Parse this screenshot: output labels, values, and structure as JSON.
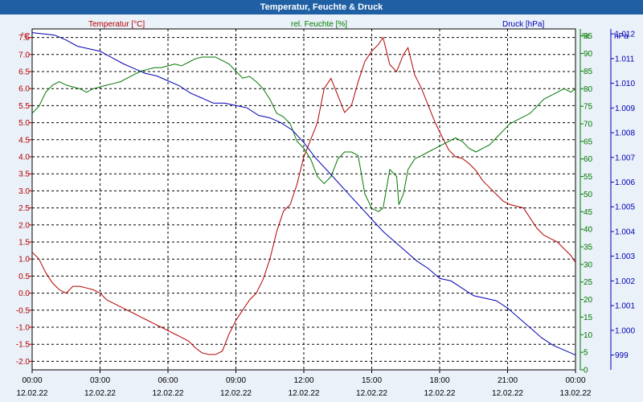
{
  "colors": {
    "temperature": "#b40000",
    "humidity": "#007800",
    "pressure": "#0000b4",
    "titlebar": "#1f5fa3",
    "background": "#eaf1f8"
  },
  "chart_data": {
    "type": "line",
    "title": "Temperatur, Feuchte & Druck",
    "grid": true,
    "x": {
      "ticks": [
        0,
        3,
        6,
        9,
        12,
        15,
        18,
        21,
        24
      ],
      "tick_labels": [
        "00:00",
        "03:00",
        "06:00",
        "09:00",
        "12:00",
        "15:00",
        "18:00",
        "21:00",
        "00:00"
      ],
      "date_labels": [
        "12.02.22",
        "12.02.22",
        "12.02.22",
        "12.02.22",
        "12.02.22",
        "12.02.22",
        "12.02.22",
        "12.02.22",
        "13.02.22"
      ],
      "range": [
        0,
        24
      ]
    },
    "axes": {
      "temperature": {
        "unit": "°C",
        "range": [
          -2.25,
          7.75
        ],
        "ticks": [
          -2.0,
          -1.5,
          -1.0,
          -0.5,
          0.0,
          0.5,
          1.0,
          1.5,
          2.0,
          2.5,
          3.0,
          3.5,
          4.0,
          4.5,
          5.0,
          5.5,
          6.0,
          6.5,
          7.0,
          7.5
        ],
        "tick_labels": [
          "-2.0",
          "-1.5",
          "-1.0",
          "-0.5",
          "0.0",
          "0.5",
          "1.0",
          "1.5",
          "2.0",
          "2.5",
          "3.0",
          "3.5",
          "4.0",
          "4.5",
          "5.0",
          "5.5",
          "6.0",
          "6.5",
          "7.0",
          "7.5"
        ]
      },
      "humidity": {
        "unit": "%",
        "range": [
          0,
          97
        ],
        "ticks": [
          0,
          5,
          10,
          15,
          20,
          25,
          30,
          35,
          40,
          45,
          50,
          55,
          60,
          65,
          70,
          75,
          80,
          85,
          90,
          95
        ],
        "tick_labels": [
          "0",
          "5",
          "10",
          "15",
          "20",
          "25",
          "30",
          "35",
          "40",
          "45",
          "50",
          "55",
          "60",
          "65",
          "70",
          "75",
          "80",
          "85",
          "90",
          "95"
        ]
      },
      "pressure": {
        "unit": "hPa",
        "range": [
          998.4,
          1012.2
        ],
        "ticks": [
          999,
          1000,
          1001,
          1002,
          1003,
          1004,
          1005,
          1006,
          1007,
          1008,
          1009,
          1010,
          1011,
          1012
        ],
        "tick_labels": [
          "999",
          "1.000",
          "1.001",
          "1.002",
          "1.003",
          "1.004",
          "1.005",
          "1.006",
          "1.007",
          "1.008",
          "1.009",
          "1.010",
          "1.011",
          "1.012"
        ]
      }
    },
    "series": [
      {
        "name": "Temperatur [°C]",
        "axis": "temperature",
        "color": "#b40000",
        "points": [
          [
            0,
            1.2
          ],
          [
            0.3,
            1.0
          ],
          [
            0.6,
            0.6
          ],
          [
            0.9,
            0.3
          ],
          [
            1.2,
            0.1
          ],
          [
            1.5,
            0.0
          ],
          [
            1.8,
            0.2
          ],
          [
            2.1,
            0.2
          ],
          [
            2.4,
            0.15
          ],
          [
            2.7,
            0.1
          ],
          [
            3.0,
            0.0
          ],
          [
            3.3,
            -0.2
          ],
          [
            3.6,
            -0.3
          ],
          [
            3.9,
            -0.4
          ],
          [
            4.2,
            -0.5
          ],
          [
            4.5,
            -0.6
          ],
          [
            4.8,
            -0.7
          ],
          [
            5.1,
            -0.8
          ],
          [
            5.4,
            -0.9
          ],
          [
            5.7,
            -1.0
          ],
          [
            6.0,
            -1.1
          ],
          [
            6.3,
            -1.2
          ],
          [
            6.6,
            -1.3
          ],
          [
            6.9,
            -1.4
          ],
          [
            7.2,
            -1.6
          ],
          [
            7.5,
            -1.75
          ],
          [
            7.8,
            -1.8
          ],
          [
            8.1,
            -1.8
          ],
          [
            8.4,
            -1.7
          ],
          [
            8.7,
            -1.2
          ],
          [
            9.0,
            -0.8
          ],
          [
            9.3,
            -0.5
          ],
          [
            9.6,
            -0.2
          ],
          [
            9.9,
            0.0
          ],
          [
            10.2,
            0.4
          ],
          [
            10.5,
            1.0
          ],
          [
            10.8,
            1.8
          ],
          [
            11.1,
            2.4
          ],
          [
            11.4,
            2.6
          ],
          [
            11.7,
            3.2
          ],
          [
            12.0,
            4.0
          ],
          [
            12.3,
            4.5
          ],
          [
            12.6,
            5.0
          ],
          [
            12.9,
            6.0
          ],
          [
            13.2,
            6.3
          ],
          [
            13.5,
            5.8
          ],
          [
            13.8,
            5.3
          ],
          [
            14.1,
            5.5
          ],
          [
            14.4,
            6.2
          ],
          [
            14.7,
            6.8
          ],
          [
            15.0,
            7.1
          ],
          [
            15.3,
            7.3
          ],
          [
            15.5,
            7.5
          ],
          [
            15.8,
            6.7
          ],
          [
            16.1,
            6.5
          ],
          [
            16.4,
            7.0
          ],
          [
            16.6,
            7.2
          ],
          [
            16.9,
            6.4
          ],
          [
            17.2,
            6.0
          ],
          [
            17.5,
            5.5
          ],
          [
            17.8,
            5.0
          ],
          [
            18.1,
            4.6
          ],
          [
            18.4,
            4.2
          ],
          [
            18.7,
            4.0
          ],
          [
            19.0,
            3.95
          ],
          [
            19.3,
            3.8
          ],
          [
            19.6,
            3.6
          ],
          [
            19.9,
            3.3
          ],
          [
            20.2,
            3.1
          ],
          [
            20.5,
            2.9
          ],
          [
            20.8,
            2.7
          ],
          [
            21.1,
            2.6
          ],
          [
            21.4,
            2.55
          ],
          [
            21.7,
            2.5
          ],
          [
            22.0,
            2.2
          ],
          [
            22.3,
            1.9
          ],
          [
            22.6,
            1.7
          ],
          [
            22.9,
            1.6
          ],
          [
            23.2,
            1.5
          ],
          [
            23.5,
            1.3
          ],
          [
            23.8,
            1.1
          ],
          [
            24.0,
            0.9
          ]
        ]
      },
      {
        "name": "rel. Feuchte [%]",
        "axis": "humidity",
        "color": "#007800",
        "points": [
          [
            0,
            73
          ],
          [
            0.3,
            75
          ],
          [
            0.6,
            79
          ],
          [
            0.9,
            81
          ],
          [
            1.2,
            82
          ],
          [
            1.5,
            81
          ],
          [
            1.8,
            80.5
          ],
          [
            2.1,
            80
          ],
          [
            2.4,
            79
          ],
          [
            2.7,
            80
          ],
          [
            3.0,
            80.5
          ],
          [
            3.3,
            81
          ],
          [
            3.6,
            81.5
          ],
          [
            3.9,
            82
          ],
          [
            4.2,
            83
          ],
          [
            4.5,
            84
          ],
          [
            4.8,
            85
          ],
          [
            5.1,
            85.5
          ],
          [
            5.4,
            86
          ],
          [
            5.7,
            86
          ],
          [
            6.0,
            86.5
          ],
          [
            6.3,
            87
          ],
          [
            6.6,
            86.5
          ],
          [
            6.9,
            87.5
          ],
          [
            7.2,
            88.5
          ],
          [
            7.5,
            89
          ],
          [
            7.8,
            89
          ],
          [
            8.1,
            89
          ],
          [
            8.4,
            88
          ],
          [
            8.7,
            87
          ],
          [
            9.0,
            85
          ],
          [
            9.3,
            83
          ],
          [
            9.6,
            83.5
          ],
          [
            9.9,
            82
          ],
          [
            10.2,
            80
          ],
          [
            10.5,
            77
          ],
          [
            10.8,
            73
          ],
          [
            11.1,
            72
          ],
          [
            11.4,
            70
          ],
          [
            11.7,
            65
          ],
          [
            12.0,
            63
          ],
          [
            12.3,
            60
          ],
          [
            12.6,
            55
          ],
          [
            12.9,
            53
          ],
          [
            13.2,
            55
          ],
          [
            13.5,
            60
          ],
          [
            13.8,
            62
          ],
          [
            14.1,
            62
          ],
          [
            14.4,
            61
          ],
          [
            14.7,
            50
          ],
          [
            15.0,
            46
          ],
          [
            15.3,
            45
          ],
          [
            15.5,
            46
          ],
          [
            15.8,
            57
          ],
          [
            16.1,
            55
          ],
          [
            16.2,
            47
          ],
          [
            16.4,
            50
          ],
          [
            16.6,
            57
          ],
          [
            16.9,
            60
          ],
          [
            17.2,
            61
          ],
          [
            17.5,
            62
          ],
          [
            17.8,
            63
          ],
          [
            18.1,
            64
          ],
          [
            18.4,
            65
          ],
          [
            18.7,
            66
          ],
          [
            19.0,
            65
          ],
          [
            19.3,
            63
          ],
          [
            19.6,
            62
          ],
          [
            19.9,
            63
          ],
          [
            20.2,
            64
          ],
          [
            20.5,
            66
          ],
          [
            20.8,
            68
          ],
          [
            21.1,
            70
          ],
          [
            21.4,
            71
          ],
          [
            21.7,
            72
          ],
          [
            22.0,
            73
          ],
          [
            22.3,
            75
          ],
          [
            22.6,
            77
          ],
          [
            22.9,
            78
          ],
          [
            23.2,
            79
          ],
          [
            23.5,
            80
          ],
          [
            23.8,
            79
          ],
          [
            24.0,
            80
          ]
        ]
      },
      {
        "name": "Druck [hPa]",
        "axis": "pressure",
        "color": "#0000b4",
        "points": [
          [
            0,
            1012.05
          ],
          [
            0.5,
            1012.0
          ],
          [
            1.0,
            1011.95
          ],
          [
            1.5,
            1011.75
          ],
          [
            2.0,
            1011.5
          ],
          [
            2.5,
            1011.4
          ],
          [
            3.0,
            1011.3
          ],
          [
            3.5,
            1011.05
          ],
          [
            4.0,
            1010.8
          ],
          [
            4.5,
            1010.6
          ],
          [
            5.0,
            1010.4
          ],
          [
            5.5,
            1010.3
          ],
          [
            6.0,
            1010.1
          ],
          [
            6.5,
            1009.9
          ],
          [
            7.0,
            1009.6
          ],
          [
            7.5,
            1009.4
          ],
          [
            8.0,
            1009.2
          ],
          [
            8.5,
            1009.2
          ],
          [
            9.0,
            1009.1
          ],
          [
            9.5,
            1009.0
          ],
          [
            10.0,
            1008.7
          ],
          [
            10.5,
            1008.6
          ],
          [
            11.0,
            1008.4
          ],
          [
            11.5,
            1008.1
          ],
          [
            12.0,
            1007.6
          ],
          [
            12.5,
            1007.0
          ],
          [
            13.0,
            1006.5
          ],
          [
            13.5,
            1006.0
          ],
          [
            14.0,
            1005.5
          ],
          [
            14.5,
            1005.0
          ],
          [
            15.0,
            1004.5
          ],
          [
            15.5,
            1004.0
          ],
          [
            16.0,
            1003.6
          ],
          [
            16.5,
            1003.2
          ],
          [
            17.0,
            1002.8
          ],
          [
            17.5,
            1002.5
          ],
          [
            18.0,
            1002.1
          ],
          [
            18.5,
            1002.0
          ],
          [
            19.0,
            1001.7
          ],
          [
            19.5,
            1001.4
          ],
          [
            20.0,
            1001.3
          ],
          [
            20.5,
            1001.2
          ],
          [
            21.0,
            1000.9
          ],
          [
            21.5,
            1000.5
          ],
          [
            22.0,
            1000.1
          ],
          [
            22.5,
            999.7
          ],
          [
            23.0,
            999.4
          ],
          [
            23.5,
            999.2
          ],
          [
            24.0,
            999.0
          ]
        ]
      }
    ]
  }
}
